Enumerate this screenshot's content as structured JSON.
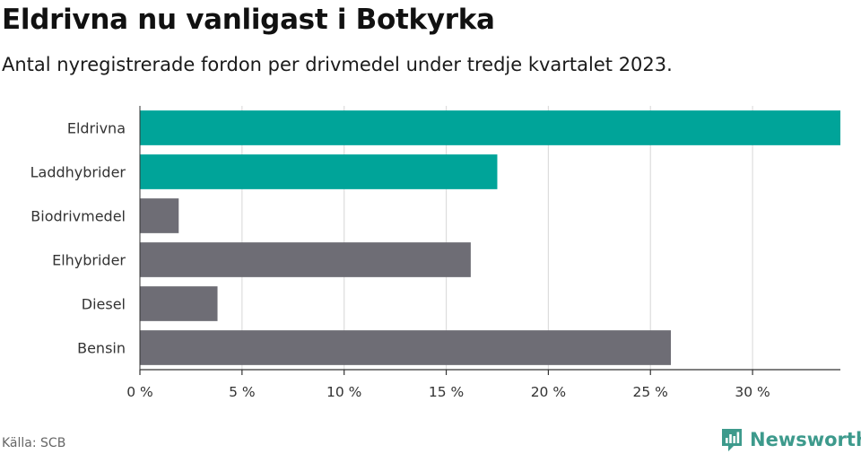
{
  "title": "Eldrivna nu vanligast i Botkyrka",
  "subtitle": "Antal nyregistrerade fordon per drivmedel under tredje kvartalet 2023.",
  "source": "Källa: SCB",
  "brand": {
    "name": "Newsworthy",
    "icon": "newsworthy-logo-icon"
  },
  "colors": {
    "highlight": "#00a499",
    "default": "#6e6d75",
    "grid": "#dddddd",
    "axis": "#333333"
  },
  "chart_data": {
    "type": "bar",
    "orientation": "horizontal",
    "categories": [
      "Eldrivna",
      "Laddhybrider",
      "Biodrivmedel",
      "Elhybrider",
      "Diesel",
      "Bensin"
    ],
    "values": [
      34.3,
      17.5,
      1.9,
      16.2,
      3.8,
      26.0
    ],
    "highlighted": [
      true,
      true,
      false,
      false,
      false,
      false
    ],
    "xlim": [
      0,
      34.3
    ],
    "xticks": [
      0,
      5,
      10,
      15,
      20,
      25,
      30
    ],
    "xtick_labels": [
      "0 %",
      "5 %",
      "10 %",
      "15 %",
      "20 %",
      "25 %",
      "30 %"
    ],
    "grid": true,
    "xlabel": "",
    "ylabel": ""
  }
}
